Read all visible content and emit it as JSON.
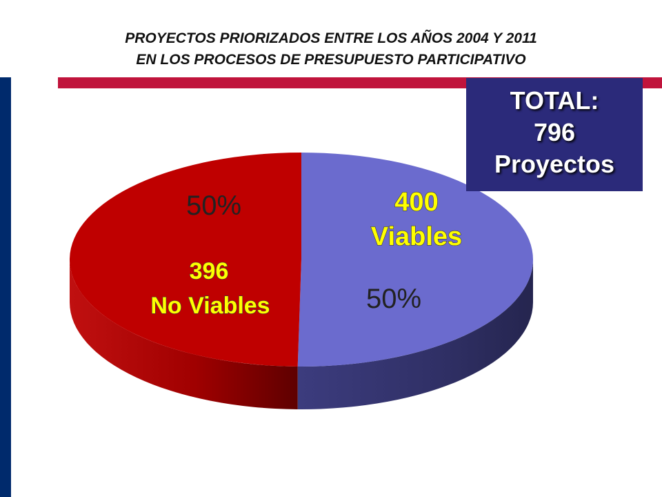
{
  "title": {
    "line1": "PROYECTOS PRIORIZADOS ENTRE LOS AÑOS 2004 Y 2011",
    "line2": "EN LOS PROCESOS DE PRESUPUESTO PARTICIPATIVO"
  },
  "total_box": {
    "line1": "TOTAL:",
    "line2": "796",
    "line3": "Proyectos"
  },
  "colors": {
    "accent_red": "#c0143c",
    "left_bar": "#002a6c",
    "viables": "#6b6bce",
    "no_viables": "#bf0000",
    "total_box": "#2b2a7a",
    "label_yellow": "#ffff00"
  },
  "chart_data": {
    "type": "pie",
    "style": "3d",
    "slices": [
      {
        "value": 400,
        "percent_label": "50%",
        "count_label": "400",
        "category_label": "Viables",
        "color": "#6b6bce"
      },
      {
        "value": 396,
        "percent_label": "50%",
        "count_label": "396",
        "category_label": "No Viables",
        "color": "#bf0000"
      }
    ]
  }
}
